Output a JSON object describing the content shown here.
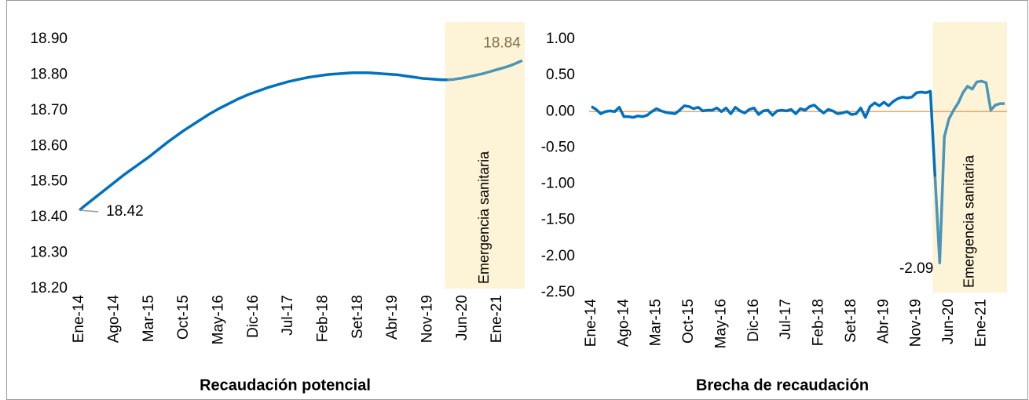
{
  "chart_data": [
    {
      "type": "line",
      "title": "Recaudación potencial",
      "categories": [
        "Ene-14",
        null,
        null,
        null,
        null,
        null,
        null,
        "Ago-14",
        null,
        null,
        null,
        null,
        null,
        null,
        "Mar-15",
        null,
        null,
        null,
        null,
        null,
        null,
        "Oct-15",
        null,
        null,
        null,
        null,
        null,
        null,
        "May-16",
        null,
        null,
        null,
        null,
        null,
        null,
        "Dic-16",
        null,
        null,
        null,
        null,
        null,
        null,
        "Jul-17",
        null,
        null,
        null,
        null,
        null,
        null,
        "Feb-18",
        null,
        null,
        null,
        null,
        null,
        null,
        "Set-18",
        null,
        null,
        null,
        null,
        null,
        null,
        "Abr-19",
        null,
        null,
        null,
        null,
        null,
        null,
        "Nov-19",
        null,
        null,
        null,
        null,
        null,
        null,
        "Jun-20",
        null,
        null,
        null,
        null,
        null,
        null,
        "Ene-21",
        null,
        null,
        null,
        null,
        null
      ],
      "series": [
        {
          "color": "#0070c0",
          "highlight_color": "#4a95b8",
          "values": [
            18.42,
            18.432,
            18.443,
            18.454,
            18.465,
            18.476,
            18.487,
            18.498,
            18.509,
            18.52,
            18.53,
            18.54,
            18.55,
            18.56,
            18.57,
            18.581,
            18.592,
            18.603,
            18.614,
            18.624,
            18.634,
            18.644,
            18.653,
            18.662,
            18.671,
            18.68,
            18.689,
            18.697,
            18.705,
            18.712,
            18.719,
            18.726,
            18.733,
            18.739,
            18.745,
            18.75,
            18.755,
            18.76,
            18.765,
            18.769,
            18.773,
            18.777,
            18.781,
            18.784,
            18.787,
            18.79,
            18.793,
            18.795,
            18.797,
            18.799,
            18.801,
            18.802,
            18.803,
            18.804,
            18.805,
            18.806,
            18.806,
            18.806,
            18.806,
            18.805,
            18.804,
            18.803,
            18.802,
            18.801,
            18.8,
            18.798,
            18.796,
            18.794,
            18.792,
            18.79,
            18.789,
            18.788,
            18.787,
            18.786,
            18.786,
            18.787,
            18.789,
            18.791,
            18.794,
            18.797,
            18.8,
            18.803,
            18.807,
            18.811,
            18.815,
            18.819,
            18.823,
            18.828,
            18.834,
            18.84
          ],
          "value_labels": [
            "18.42",
            null,
            null,
            null,
            null,
            null,
            null,
            null,
            null,
            null,
            null,
            null,
            null,
            null,
            null,
            null,
            null,
            null,
            null,
            null,
            null,
            null,
            null,
            null,
            null,
            null,
            null,
            null,
            null,
            null,
            null,
            null,
            null,
            null,
            null,
            null,
            null,
            null,
            null,
            null,
            null,
            null,
            null,
            null,
            null,
            null,
            null,
            null,
            null,
            null,
            null,
            null,
            null,
            null,
            null,
            null,
            null,
            null,
            null,
            null,
            null,
            null,
            null,
            null,
            null,
            null,
            null,
            null,
            null,
            null,
            null,
            null,
            null,
            null,
            null,
            null,
            null,
            null,
            null,
            null,
            null,
            null,
            null,
            null,
            null,
            null,
            null,
            null,
            null,
            "18.84"
          ]
        }
      ],
      "highlight": {
        "label": "Emergencia sanitaria",
        "from": 74,
        "color": "#fdf3d6"
      },
      "ylim": [
        18.2,
        18.9
      ],
      "yticks": [
        {
          "value": 18.2,
          "label": "18.20"
        },
        {
          "value": 18.3,
          "label": "18.30"
        },
        {
          "value": 18.4,
          "label": "18.40"
        },
        {
          "value": 18.5,
          "label": "18.50"
        },
        {
          "value": 18.6,
          "label": "18.60"
        },
        {
          "value": 18.7,
          "label": "18.70"
        },
        {
          "value": 18.8,
          "label": "18.80"
        },
        {
          "value": 18.9,
          "label": "18.90"
        }
      ]
    },
    {
      "type": "line",
      "title": "Brecha de recaudación",
      "categories": [
        "Ene-14",
        null,
        null,
        null,
        null,
        null,
        null,
        "Ago-14",
        null,
        null,
        null,
        null,
        null,
        null,
        "Mar-15",
        null,
        null,
        null,
        null,
        null,
        null,
        "Oct-15",
        null,
        null,
        null,
        null,
        null,
        null,
        "May-16",
        null,
        null,
        null,
        null,
        null,
        null,
        "Dic-16",
        null,
        null,
        null,
        null,
        null,
        null,
        "Jul-17",
        null,
        null,
        null,
        null,
        null,
        null,
        "Feb-18",
        null,
        null,
        null,
        null,
        null,
        null,
        "Set-18",
        null,
        null,
        null,
        null,
        null,
        null,
        "Abr-19",
        null,
        null,
        null,
        null,
        null,
        null,
        "Nov-19",
        null,
        null,
        null,
        null,
        null,
        null,
        "Jun-20",
        null,
        null,
        null,
        null,
        null,
        null,
        "Ene-21",
        null,
        null,
        null,
        null,
        null
      ],
      "series": [
        {
          "color": "#0070c0",
          "highlight_color": "#4a95b8",
          "values": [
            0.07,
            0.03,
            -0.03,
            0.0,
            0.01,
            0.0,
            0.06,
            -0.07,
            -0.07,
            -0.08,
            -0.06,
            -0.07,
            -0.05,
            0.0,
            0.04,
            0.01,
            -0.01,
            -0.02,
            -0.03,
            0.02,
            0.08,
            0.07,
            0.04,
            0.06,
            0.01,
            0.02,
            0.02,
            0.05,
            0.0,
            0.05,
            -0.03,
            0.06,
            0.01,
            -0.02,
            0.03,
            0.05,
            -0.04,
            0.01,
            0.02,
            -0.05,
            0.01,
            0.02,
            0.01,
            0.03,
            -0.03,
            0.04,
            0.02,
            0.07,
            0.09,
            0.03,
            -0.02,
            0.03,
            0.01,
            -0.03,
            -0.02,
            0.0,
            -0.04,
            -0.03,
            0.05,
            -0.08,
            0.07,
            0.12,
            0.08,
            0.13,
            0.08,
            0.14,
            0.18,
            0.2,
            0.19,
            0.2,
            0.26,
            0.27,
            0.26,
            0.28,
            -0.9,
            -2.09,
            -0.35,
            -0.1,
            0.02,
            0.12,
            0.26,
            0.35,
            0.31,
            0.41,
            0.42,
            0.4,
            0.02,
            0.09,
            0.11,
            0.11
          ],
          "value_labels": [
            null,
            null,
            null,
            null,
            null,
            null,
            null,
            null,
            null,
            null,
            null,
            null,
            null,
            null,
            null,
            null,
            null,
            null,
            null,
            null,
            null,
            null,
            null,
            null,
            null,
            null,
            null,
            null,
            null,
            null,
            null,
            null,
            null,
            null,
            null,
            null,
            null,
            null,
            null,
            null,
            null,
            null,
            null,
            null,
            null,
            null,
            null,
            null,
            null,
            null,
            null,
            null,
            null,
            null,
            null,
            null,
            null,
            null,
            null,
            null,
            null,
            null,
            null,
            null,
            null,
            null,
            null,
            null,
            null,
            null,
            null,
            null,
            null,
            null,
            null,
            "-2.09",
            null,
            null,
            null,
            null,
            null,
            null,
            null,
            null,
            null,
            null,
            null,
            null,
            null,
            null
          ]
        }
      ],
      "highlight": {
        "label": "Emergencia sanitaria",
        "from": 74,
        "color": "#fdf3d6"
      },
      "reference_line": {
        "value": 0,
        "color": "#f4a460"
      },
      "ylim": [
        -2.5,
        1.0
      ],
      "yticks": [
        {
          "value": -2.5,
          "label": "-2.50"
        },
        {
          "value": -2.0,
          "label": "-2.00"
        },
        {
          "value": -1.5,
          "label": "-1.50"
        },
        {
          "value": -1.0,
          "label": "-1.00"
        },
        {
          "value": -0.5,
          "label": "-0.50"
        },
        {
          "value": 0,
          "label": "0.00"
        },
        {
          "value": 0.5,
          "label": "0.50"
        },
        {
          "value": 1.0,
          "label": "1.00"
        }
      ]
    }
  ]
}
